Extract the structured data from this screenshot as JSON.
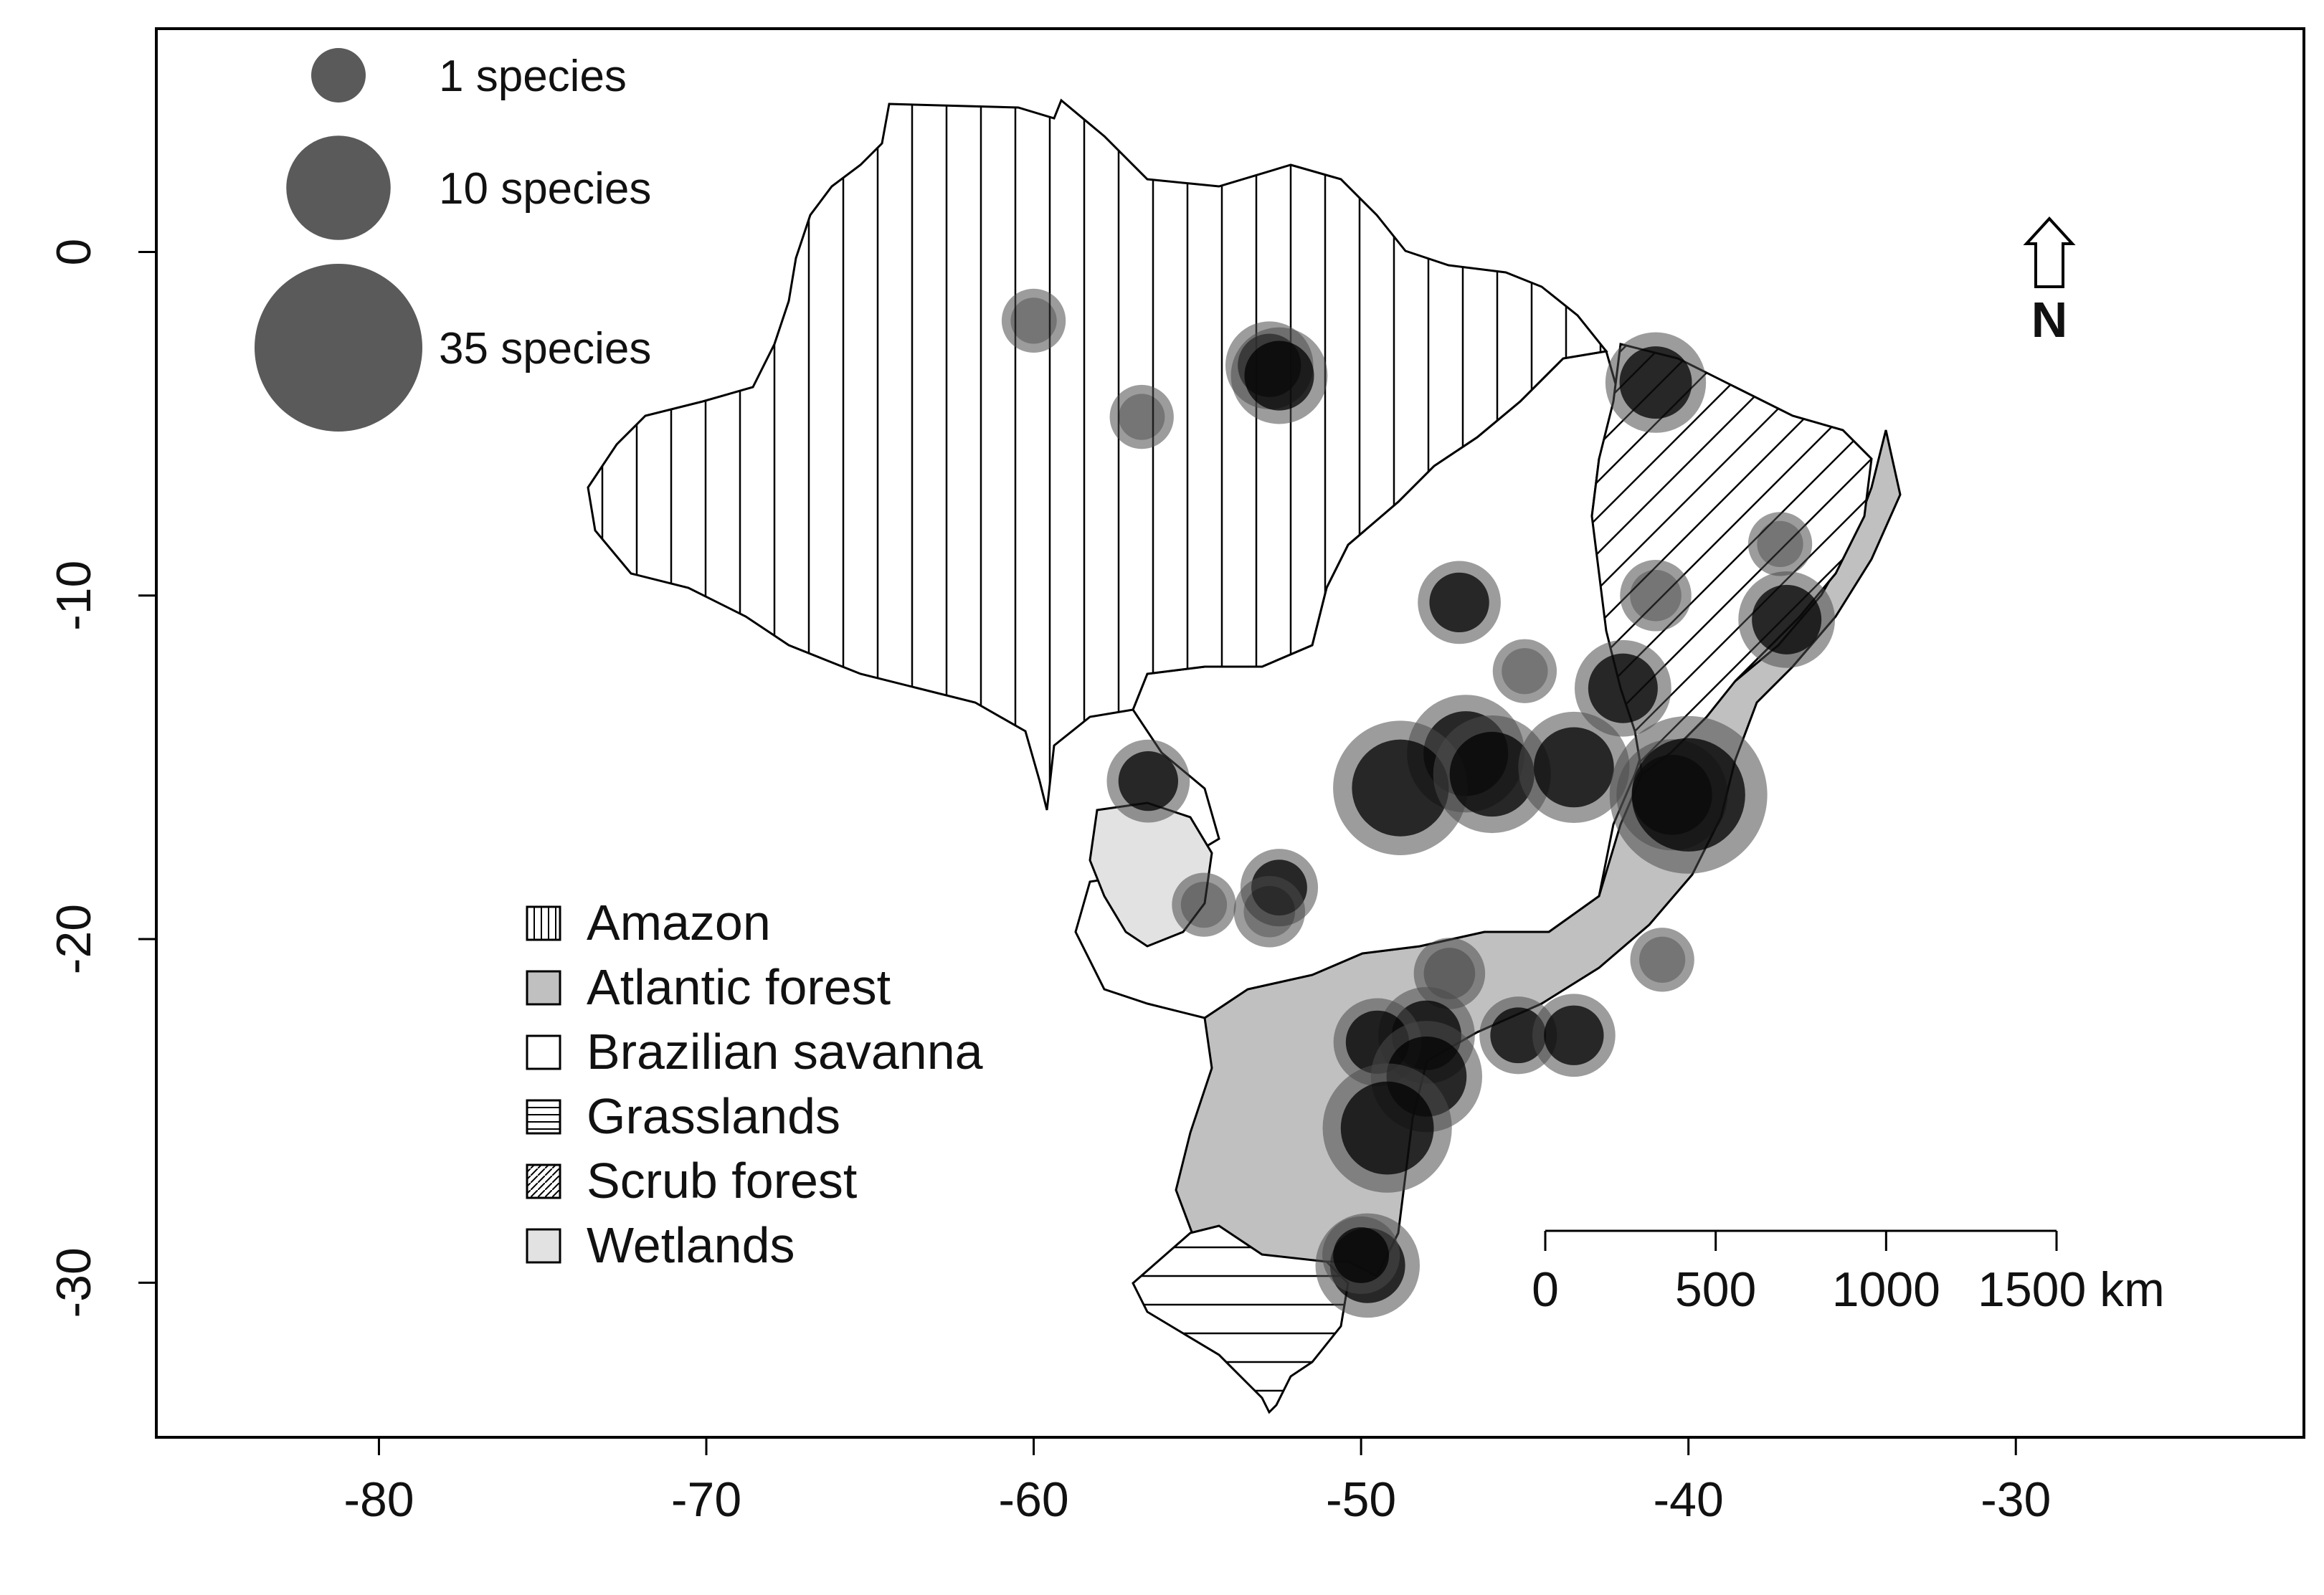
{
  "axes": {
    "x_ticks": [
      {
        "value": -80,
        "label": "-80"
      },
      {
        "value": -70,
        "label": "-70"
      },
      {
        "value": -60,
        "label": "-60"
      },
      {
        "value": -50,
        "label": "-50"
      },
      {
        "value": -40,
        "label": "-40"
      },
      {
        "value": -30,
        "label": "-30"
      }
    ],
    "y_ticks": [
      {
        "value": 0,
        "label": "0"
      },
      {
        "value": -10,
        "label": "-10"
      },
      {
        "value": -20,
        "label": "-20"
      },
      {
        "value": -30,
        "label": "-30"
      }
    ],
    "xlim": [
      -86.8,
      -21.2
    ],
    "ylim": [
      -34.5,
      6.5
    ]
  },
  "size_legend": [
    {
      "label": "1 species",
      "species": 1
    },
    {
      "label": "10 species",
      "species": 10
    },
    {
      "label": "35 species",
      "species": 35
    }
  ],
  "biome_legend": [
    {
      "label": "Amazon",
      "pattern": "vertical-lines"
    },
    {
      "label": "Atlantic forest",
      "pattern": "gray-fill"
    },
    {
      "label": "Brazilian savanna",
      "pattern": "white-fill"
    },
    {
      "label": "Grasslands",
      "pattern": "horizontal-lines"
    },
    {
      "label": "Scrub forest",
      "pattern": "diagonal-lines"
    },
    {
      "label": "Wetlands",
      "pattern": "light-gray-fill"
    }
  ],
  "north_arrow": {
    "label": "N"
  },
  "scale_bar": {
    "ticks": [
      "0",
      "500",
      "1000",
      "1500 km"
    ],
    "tick_km": [
      0,
      500,
      1000,
      1500
    ]
  },
  "colors": {
    "atlantic_forest": "#c0c0c0",
    "wetlands": "#e2e2e2",
    "savanna": "#ffffff",
    "bubble": "#4a4a4a",
    "outline": "#000000"
  },
  "chart_data": {
    "type": "scatter",
    "description_of_marks": "occurrence bubbles sized by species count",
    "points": [
      {
        "lon": -60.0,
        "lat": -2.0,
        "species": 2
      },
      {
        "lon": -56.7,
        "lat": -4.8,
        "species": 2
      },
      {
        "lon": -52.8,
        "lat": -3.3,
        "species": 6
      },
      {
        "lon": -52.5,
        "lat": -3.6,
        "species": 8
      },
      {
        "lon": -41.0,
        "lat": -3.8,
        "species": 9
      },
      {
        "lon": -37.2,
        "lat": -8.5,
        "species": 2
      },
      {
        "lon": -37.0,
        "lat": -10.7,
        "species": 8
      },
      {
        "lon": -41.0,
        "lat": -10.0,
        "species": 3
      },
      {
        "lon": -47.0,
        "lat": -10.2,
        "species": 5
      },
      {
        "lon": -45.0,
        "lat": -12.2,
        "species": 2
      },
      {
        "lon": -42.0,
        "lat": -12.7,
        "species": 8
      },
      {
        "lon": -46.8,
        "lat": -14.6,
        "species": 14
      },
      {
        "lon": -48.8,
        "lat": -15.6,
        "species": 20
      },
      {
        "lon": -46.0,
        "lat": -15.2,
        "species": 14
      },
      {
        "lon": -43.5,
        "lat": -15.0,
        "species": 12
      },
      {
        "lon": -40.5,
        "lat": -15.8,
        "species": 12
      },
      {
        "lon": -40.0,
        "lat": -15.8,
        "species": 30
      },
      {
        "lon": -56.5,
        "lat": -15.4,
        "species": 5
      },
      {
        "lon": -52.5,
        "lat": -18.5,
        "species": 4
      },
      {
        "lon": -52.8,
        "lat": -19.2,
        "species": 3
      },
      {
        "lon": -54.8,
        "lat": -19.0,
        "species": 2
      },
      {
        "lon": -40.8,
        "lat": -20.6,
        "species": 2
      },
      {
        "lon": -47.3,
        "lat": -21.0,
        "species": 3
      },
      {
        "lon": -48.0,
        "lat": -22.8,
        "species": 8
      },
      {
        "lon": -49.5,
        "lat": -23.0,
        "species": 6
      },
      {
        "lon": -48.0,
        "lat": -24.0,
        "species": 12
      },
      {
        "lon": -49.2,
        "lat": -25.5,
        "species": 18
      },
      {
        "lon": -45.2,
        "lat": -22.8,
        "species": 4
      },
      {
        "lon": -43.5,
        "lat": -22.8,
        "species": 5
      },
      {
        "lon": -49.8,
        "lat": -29.5,
        "species": 10
      },
      {
        "lon": -50.0,
        "lat": -29.2,
        "species": 4
      }
    ]
  }
}
